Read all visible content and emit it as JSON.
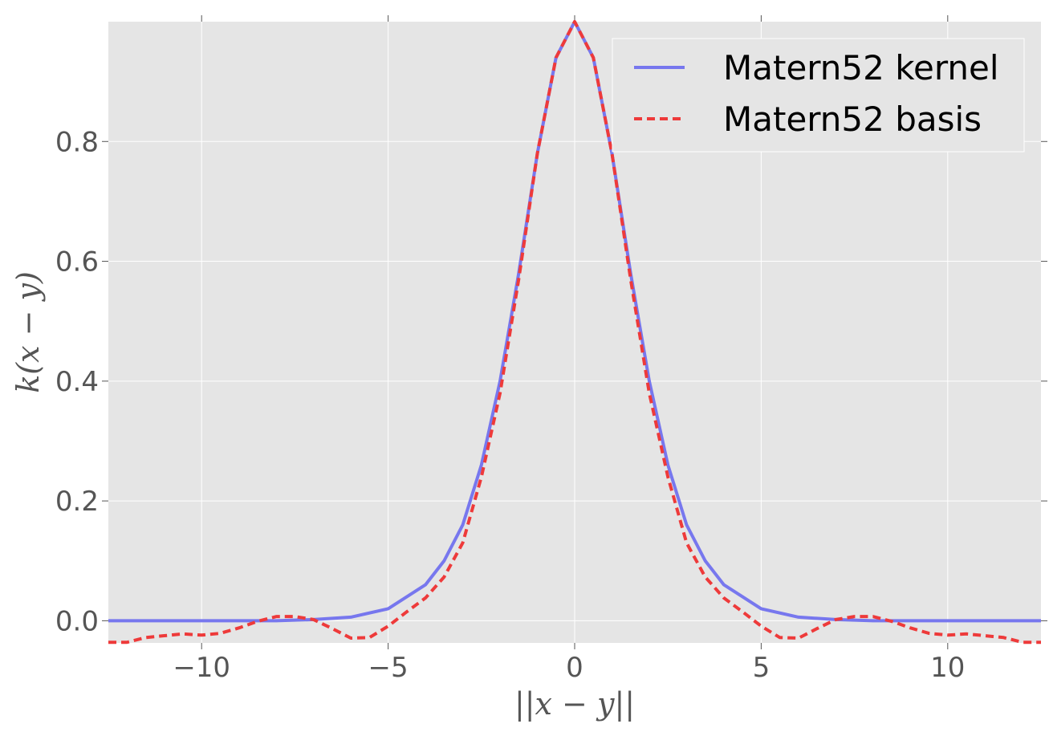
{
  "chart_data": {
    "type": "line",
    "title": "",
    "xlabel": "||x − y||",
    "ylabel": "k(x − y)",
    "xlim": [
      -12.5,
      12.5
    ],
    "ylim": [
      -0.037,
      1.0
    ],
    "grid": true,
    "background_color": "#e5e5e5",
    "grid_color": "#ffffff",
    "legend_position": "top-right",
    "x_ticks": [
      -10,
      -5,
      0,
      5,
      10
    ],
    "x_tick_labels": [
      "−10",
      "−5",
      "0",
      "5",
      "10"
    ],
    "y_ticks": [
      0.0,
      0.2,
      0.4,
      0.6,
      0.8
    ],
    "y_tick_labels": [
      "0.0",
      "0.2",
      "0.4",
      "0.6",
      "0.8"
    ],
    "series": [
      {
        "name": "Matern52 kernel",
        "color": "#7777ee",
        "style": "solid",
        "x": [
          -12.5,
          -10,
          -8,
          -7,
          -6,
          -5,
          -4,
          -3.5,
          -3,
          -2.5,
          -2,
          -1.5,
          -1,
          -0.5,
          0,
          0.5,
          1,
          1.5,
          2,
          2.5,
          3,
          3.5,
          4,
          5,
          6,
          7,
          8,
          10,
          12.5
        ],
        "y": [
          0.0,
          0.0,
          0.0,
          0.002,
          0.006,
          0.02,
          0.06,
          0.1,
          0.16,
          0.26,
          0.4,
          0.58,
          0.78,
          0.94,
          1.0,
          0.94,
          0.78,
          0.58,
          0.4,
          0.26,
          0.16,
          0.1,
          0.06,
          0.02,
          0.006,
          0.002,
          0.0,
          0.0,
          0.0
        ]
      },
      {
        "name": "Matern52 basis",
        "color": "#ee3a3a",
        "style": "dashed",
        "x": [
          -12.5,
          -12,
          -11.5,
          -11,
          -10.5,
          -10,
          -9.5,
          -9,
          -8.5,
          -8,
          -7.5,
          -7,
          -6.5,
          -6,
          -5.5,
          -5,
          -4.5,
          -4,
          -3.5,
          -3,
          -2.5,
          -2,
          -1.5,
          -1,
          -0.5,
          0,
          0.5,
          1,
          1.5,
          2,
          2.5,
          3,
          3.5,
          4,
          4.5,
          5,
          5.5,
          6,
          6.5,
          7,
          7.5,
          8,
          8.5,
          9,
          9.5,
          10,
          10.5,
          11,
          11.5,
          12,
          12.5
        ],
        "y": [
          -0.036,
          -0.036,
          -0.028,
          -0.025,
          -0.022,
          -0.024,
          -0.021,
          -0.012,
          -0.001,
          0.007,
          0.007,
          0.002,
          -0.013,
          -0.029,
          -0.028,
          -0.009,
          0.015,
          0.038,
          0.073,
          0.13,
          0.24,
          0.38,
          0.57,
          0.78,
          0.94,
          1.0,
          0.94,
          0.78,
          0.57,
          0.38,
          0.24,
          0.13,
          0.073,
          0.038,
          0.015,
          -0.009,
          -0.028,
          -0.029,
          -0.013,
          0.002,
          0.007,
          0.007,
          -0.001,
          -0.012,
          -0.021,
          -0.024,
          -0.022,
          -0.025,
          -0.028,
          -0.036,
          -0.036
        ]
      }
    ]
  }
}
